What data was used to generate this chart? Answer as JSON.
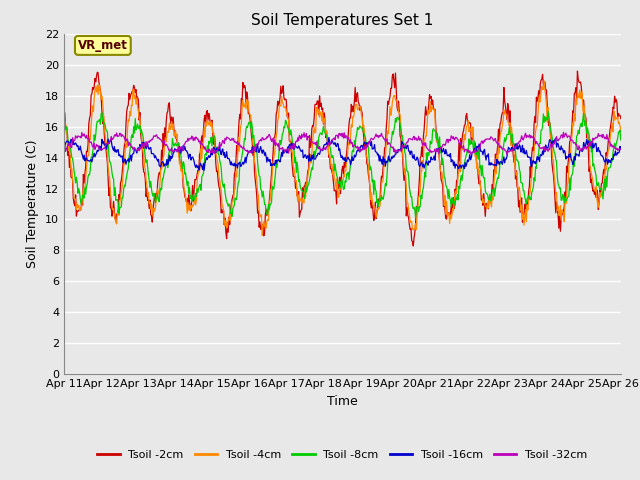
{
  "title": "Soil Temperatures Set 1",
  "xlabel": "Time",
  "ylabel": "Soil Temperature (C)",
  "ylim": [
    0,
    22
  ],
  "yticks": [
    0,
    2,
    4,
    6,
    8,
    10,
    12,
    14,
    16,
    18,
    20,
    22
  ],
  "colors": {
    "Tsoil -2cm": "#cc0000",
    "Tsoil -4cm": "#ff8800",
    "Tsoil -8cm": "#00cc00",
    "Tsoil -16cm": "#0000cc",
    "Tsoil -32cm": "#bb00bb"
  },
  "bg_color": "#e8e8e8",
  "fig_bg_color": "#e8e8e8",
  "annotation_text": "VR_met",
  "annotation_box_color": "#ffff99",
  "annotation_border_color": "#888800",
  "n_days": 15,
  "pts_per_day": 48
}
